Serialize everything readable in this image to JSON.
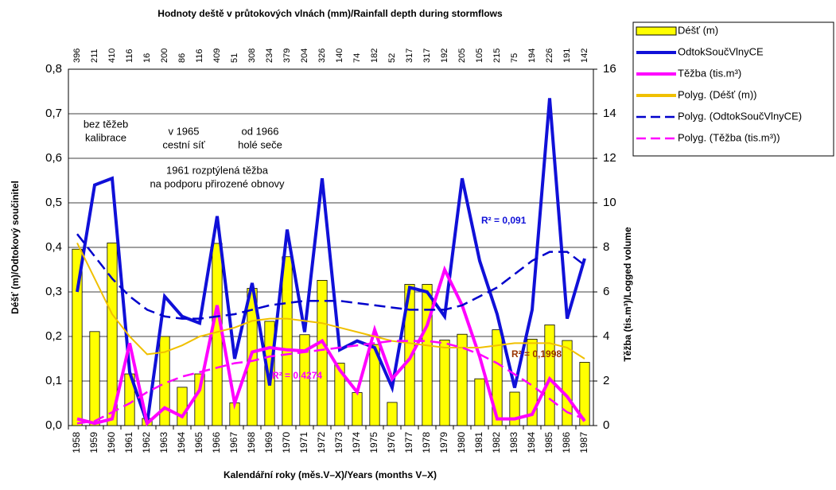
{
  "chart_data": {
    "type": "bar",
    "title": "Hodnoty deště v průtokových vlnách (mm)/Rainfall depth during stormflows",
    "x_label": "Kalendářní roky (měs.V–X)/Years (months V–X)",
    "y_label": "Déšť (m)/Odtokový součinitel",
    "y2_label": "Těžba (tis.m³)/Logged volume",
    "categories": [
      "1958",
      "1959",
      "1960",
      "1961",
      "1962",
      "1963",
      "1964",
      "1965",
      "1966",
      "1967",
      "1968",
      "1969",
      "1970",
      "1971",
      "1972",
      "1973",
      "1974",
      "1975",
      "1976",
      "1977",
      "1978",
      "1979",
      "1980",
      "1981",
      "1982",
      "1983",
      "1984",
      "1985",
      "1986",
      "1987"
    ],
    "ylim": [
      0,
      0.8
    ],
    "yticks": [
      {
        "value": 0,
        "label": "0,0"
      },
      {
        "value": 0.1,
        "label": "0,1"
      },
      {
        "value": 0.2,
        "label": "0,2"
      },
      {
        "value": 0.3,
        "label": "0,3"
      },
      {
        "value": 0.4,
        "label": "0,4"
      },
      {
        "value": 0.5,
        "label": "0,5"
      },
      {
        "value": 0.6,
        "label": "0,6"
      },
      {
        "value": 0.7,
        "label": "0,7"
      },
      {
        "value": 0.8,
        "label": "0,8"
      }
    ],
    "y2lim": [
      0,
      16
    ],
    "y2ticks": [
      0,
      2,
      4,
      6,
      8,
      10,
      12,
      14,
      16
    ],
    "grid": true,
    "legend": "right",
    "series": [
      {
        "name": "Déšť (m)",
        "type": "bar",
        "color": "#ffff00",
        "values": [
          0.396,
          0.211,
          0.41,
          0.116,
          0.016,
          0.2,
          0.086,
          0.116,
          0.409,
          0.051,
          0.308,
          0.234,
          0.379,
          0.204,
          0.326,
          0.14,
          0.074,
          0.182,
          0.052,
          0.317,
          0.317,
          0.192,
          0.205,
          0.105,
          0.215,
          0.075,
          0.194,
          0.226,
          0.191,
          0.142
        ],
        "value_labels": [
          "396",
          "211",
          "410",
          "116",
          "16",
          "200",
          "86",
          "116",
          "409",
          "51",
          "308",
          "234",
          "379",
          "204",
          "326",
          "140",
          "74",
          "182",
          "52",
          "317",
          "317",
          "192",
          "205",
          "105",
          "215",
          "75",
          "194",
          "226",
          "191",
          "142"
        ]
      },
      {
        "name": "OdtokSoučVlnyCE",
        "type": "line",
        "color": "#1010d8",
        "values": [
          0.3,
          0.54,
          0.555,
          0.12,
          0.005,
          0.29,
          0.245,
          0.23,
          0.47,
          0.15,
          0.32,
          0.09,
          0.44,
          0.21,
          0.555,
          0.17,
          0.19,
          0.175,
          0.085,
          0.31,
          0.3,
          0.245,
          0.555,
          0.37,
          0.25,
          0.085,
          0.26,
          0.735,
          0.24,
          0.375
        ]
      },
      {
        "name": "Těžba (tis.m³)",
        "type": "line",
        "axis": "y2",
        "color": "#ff00ff",
        "values": [
          0.3,
          0.1,
          0.3,
          3.7,
          0.1,
          0.8,
          0.4,
          1.6,
          5.4,
          1.0,
          3.3,
          3.5,
          3.4,
          3.35,
          3.8,
          2.5,
          1.5,
          4.3,
          2.1,
          3.0,
          4.5,
          7.0,
          5.4,
          3.1,
          0.3,
          0.3,
          0.5,
          2.1,
          1.3,
          0.2
        ]
      },
      {
        "name": "Polyg. (Déšť (m))",
        "type": "line",
        "color": "#f0c000",
        "values": [
          0.41,
          0.33,
          0.25,
          0.2,
          0.16,
          0.165,
          0.18,
          0.2,
          0.21,
          0.22,
          0.235,
          0.24,
          0.24,
          0.235,
          0.23,
          0.22,
          0.21,
          0.2,
          0.19,
          0.185,
          0.18,
          0.175,
          0.175,
          0.175,
          0.18,
          0.185,
          0.185,
          0.185,
          0.175,
          0.15
        ],
        "r2_label": "R² = 0,1998",
        "r2_color": "#993300"
      },
      {
        "name": "Polyg. (OdtokSoučVlnyCE)",
        "type": "line",
        "dash": true,
        "color": "#0000cc",
        "values": [
          0.43,
          0.38,
          0.33,
          0.29,
          0.26,
          0.245,
          0.24,
          0.24,
          0.245,
          0.25,
          0.26,
          0.27,
          0.275,
          0.28,
          0.28,
          0.28,
          0.275,
          0.27,
          0.265,
          0.26,
          0.26,
          0.26,
          0.27,
          0.29,
          0.31,
          0.34,
          0.37,
          0.39,
          0.39,
          0.36
        ],
        "r2_label": "R² = 0,091",
        "r2_color": "#1010d8"
      },
      {
        "name": "Polyg. (Těžba (tis.m³))",
        "type": "line",
        "dash": true,
        "axis": "y2",
        "color": "#ff00ff",
        "values": [
          0.1,
          0.2,
          0.6,
          1.0,
          1.5,
          1.9,
          2.2,
          2.4,
          2.6,
          2.8,
          2.9,
          3.1,
          3.2,
          3.3,
          3.4,
          3.5,
          3.6,
          3.7,
          3.8,
          3.8,
          3.8,
          3.7,
          3.5,
          3.2,
          2.8,
          2.3,
          1.8,
          1.2,
          0.6,
          0.3
        ],
        "r2_label": "R² = 0,4274",
        "r2_color": "#ff00ff"
      }
    ],
    "annotations": [
      {
        "lines": [
          "bez těžeb",
          "kalibrace"
        ]
      },
      {
        "lines": [
          "v 1965",
          "cestní síť"
        ]
      },
      {
        "lines": [
          "od 1966",
          "holé seče"
        ]
      },
      {
        "lines": [
          "1961 rozptýlená těžba",
          "na podporu přirozené obnovy"
        ]
      }
    ]
  }
}
